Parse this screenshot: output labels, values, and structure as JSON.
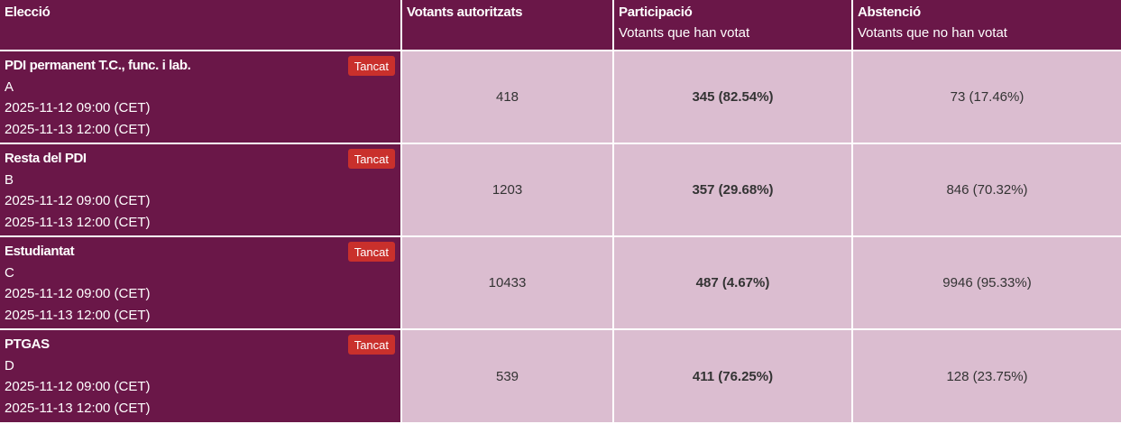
{
  "headers": {
    "election": "Elecció",
    "authorized": "Votants autoritzats",
    "participation": "Participació",
    "participation_sub": "Votants que han votat",
    "abstention": "Abstenció",
    "abstention_sub": "Votants que no han votat"
  },
  "rows": [
    {
      "name": "PDI permanent T.C., func. i lab.",
      "code": "A",
      "start": "2025-11-12 09:00 (CET)",
      "end": "2025-11-13 12:00 (CET)",
      "status": "Tancat",
      "authorized": "418",
      "participation": "345 (82.54%)",
      "abstention": "73 (17.46%)"
    },
    {
      "name": "Resta del PDI",
      "code": "B",
      "start": "2025-11-12 09:00 (CET)",
      "end": "2025-11-13 12:00 (CET)",
      "status": "Tancat",
      "authorized": "1203",
      "participation": "357 (29.68%)",
      "abstention": "846 (70.32%)"
    },
    {
      "name": "Estudiantat",
      "code": "C",
      "start": "2025-11-12 09:00 (CET)",
      "end": "2025-11-13 12:00 (CET)",
      "status": "Tancat",
      "authorized": "10433",
      "participation": "487 (4.67%)",
      "abstention": "9946 (95.33%)"
    },
    {
      "name": "PTGAS",
      "code": "D",
      "start": "2025-11-12 09:00 (CET)",
      "end": "2025-11-13 12:00 (CET)",
      "status": "Tancat",
      "authorized": "539",
      "participation": "411 (76.25%)",
      "abstention": "128 (23.75%)"
    }
  ],
  "colors": {
    "header_bg": "#6a1748",
    "cell_bg": "#dbbdd0",
    "badge_bg": "#c9302c"
  }
}
